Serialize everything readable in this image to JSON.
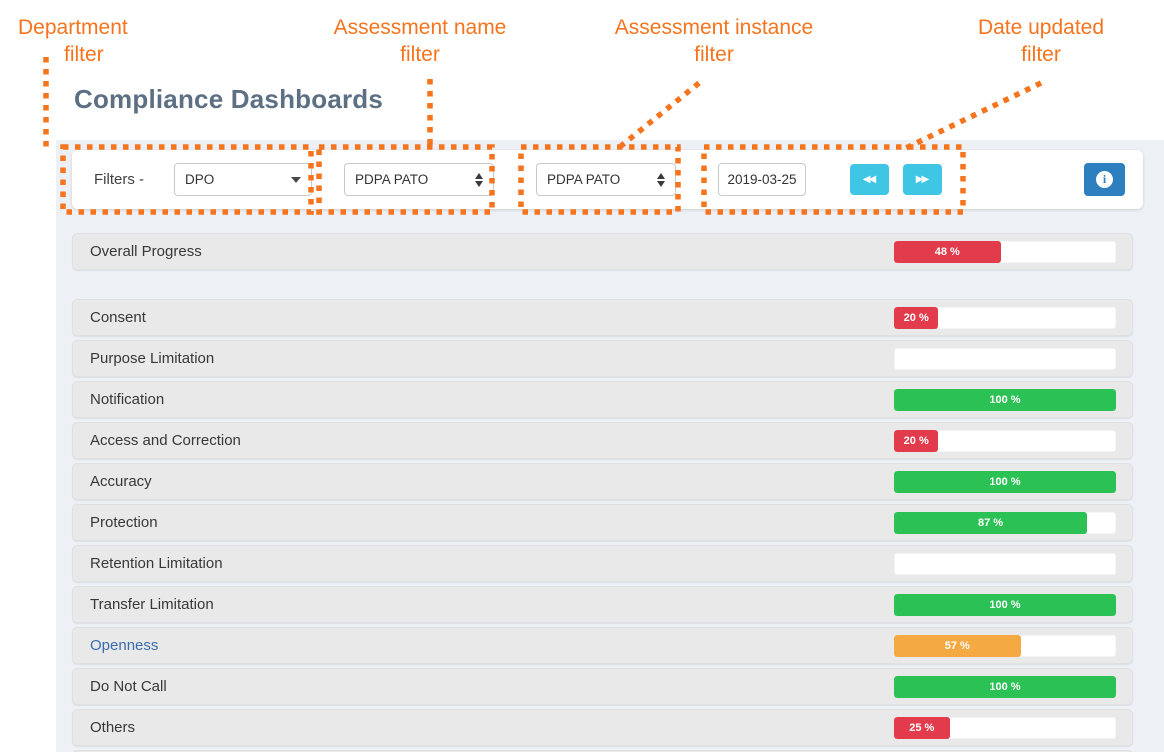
{
  "page_title": "Compliance Dashboards",
  "annotations": {
    "labels": [
      {
        "line1": "Department",
        "line2": "filter"
      },
      {
        "line1": "Assessment name",
        "line2": "filter"
      },
      {
        "line1": "Assessment instance",
        "line2": "filter"
      },
      {
        "line1": "Date updated",
        "line2": "filter"
      }
    ]
  },
  "filter_bar": {
    "label": "Filters -",
    "department_value": "DPO",
    "assessment_name_value": "PDPA PATO",
    "assessment_instance_value": "PDPA PATO",
    "date_value": "2019-03-25",
    "prev_icon": "◀◀",
    "next_icon": "▶▶",
    "info_icon": "i"
  },
  "colors": {
    "annotation": "#f5741d",
    "title": "#5d7083",
    "danger": "#e23b4c",
    "success": "#2bc155",
    "warning": "#f5a942",
    "nav_button": "#3fc6e5",
    "info_button": "#2e7fc0",
    "link_label": "#3a6cb0",
    "row_background": "#e9e9e9",
    "panel_background": "#edf1f6"
  },
  "rows": [
    {
      "label": "Overall Progress",
      "value": 48,
      "display": "48 %",
      "color": "danger",
      "overall": true
    },
    {
      "label": "Consent",
      "value": 20,
      "display": "20 %",
      "color": "danger",
      "overall": false
    },
    {
      "label": "Purpose Limitation",
      "value": 0,
      "display": "",
      "color": "none",
      "overall": false
    },
    {
      "label": "Notification",
      "value": 100,
      "display": "100 %",
      "color": "success",
      "overall": false
    },
    {
      "label": "Access and Correction",
      "value": 20,
      "display": "20 %",
      "color": "danger",
      "overall": false
    },
    {
      "label": "Accuracy",
      "value": 100,
      "display": "100 %",
      "color": "success",
      "overall": false
    },
    {
      "label": "Protection",
      "value": 87,
      "display": "87 %",
      "color": "success",
      "overall": false
    },
    {
      "label": "Retention Limitation",
      "value": 0,
      "display": "",
      "color": "none",
      "overall": false
    },
    {
      "label": "Transfer Limitation",
      "value": 100,
      "display": "100 %",
      "color": "success",
      "overall": false
    },
    {
      "label": "Openness",
      "value": 57,
      "display": "57 %",
      "color": "warning",
      "overall": false,
      "link": true
    },
    {
      "label": "Do Not Call",
      "value": 100,
      "display": "100 %",
      "color": "success",
      "overall": false
    },
    {
      "label": "Others",
      "value": 25,
      "display": "25 %",
      "color": "danger",
      "overall": false
    }
  ],
  "chart_data": {
    "type": "bar",
    "title": "Compliance Dashboards",
    "categories": [
      "Overall Progress",
      "Consent",
      "Purpose Limitation",
      "Notification",
      "Access and Correction",
      "Accuracy",
      "Protection",
      "Retention Limitation",
      "Transfer Limitation",
      "Openness",
      "Do Not Call",
      "Others"
    ],
    "values": [
      48,
      20,
      0,
      100,
      20,
      100,
      87,
      0,
      100,
      57,
      100,
      25
    ],
    "unit": "%",
    "ylim": [
      0,
      100
    ],
    "bar_colors": [
      "#e23b4c",
      "#e23b4c",
      "none",
      "#2bc155",
      "#e23b4c",
      "#2bc155",
      "#2bc155",
      "none",
      "#2bc155",
      "#f5a942",
      "#2bc155",
      "#e23b4c"
    ]
  }
}
